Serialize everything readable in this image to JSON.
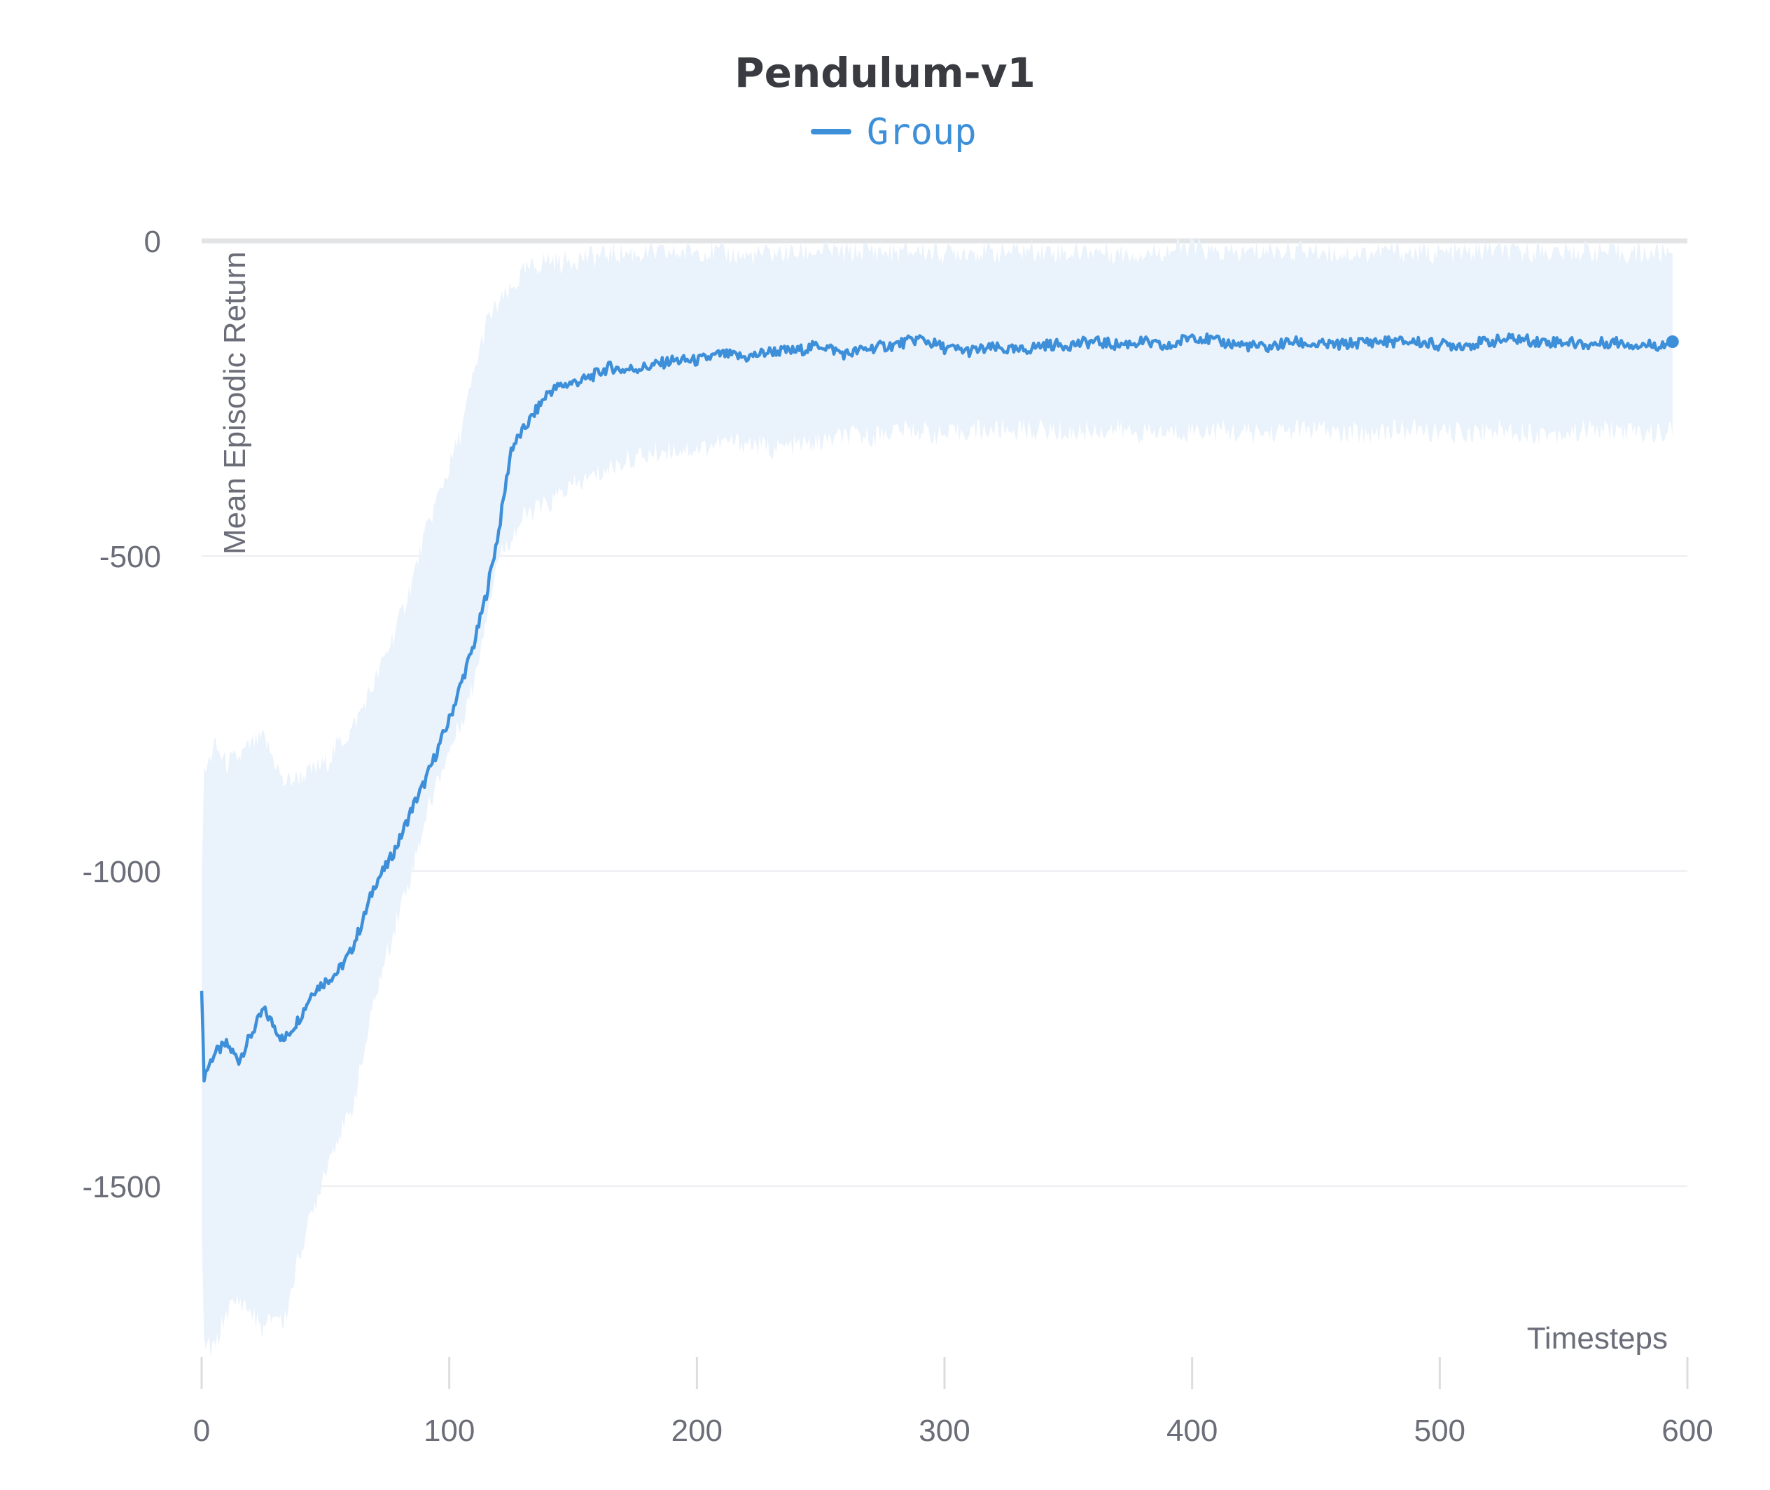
{
  "chart_data": {
    "type": "line",
    "title": "Pendulum-v1",
    "xlabel": "Timesteps",
    "ylabel": "Mean Episodic Return",
    "xlim": [
      0,
      600
    ],
    "ylim": [
      -1800,
      0
    ],
    "x_ticks": [
      "0",
      "100",
      "200",
      "300",
      "400",
      "500",
      "600"
    ],
    "y_ticks": [
      "0",
      "-500",
      "-1000",
      "-1500"
    ],
    "y_tick_values": [
      0,
      -500,
      -1000,
      -1500
    ],
    "x_tick_values": [
      0,
      100,
      200,
      300,
      400,
      500,
      600
    ],
    "grid": true,
    "legend_position": "top-center",
    "series": [
      {
        "name": "Group",
        "color": "#3c8fd8",
        "band_color": "#eaf2fb",
        "x": [
          0,
          1,
          5,
          10,
          15,
          20,
          25,
          30,
          33,
          40,
          45,
          50,
          55,
          60,
          65,
          70,
          75,
          80,
          85,
          90,
          95,
          100,
          105,
          110,
          115,
          120,
          125,
          130,
          135,
          140,
          145,
          150,
          155,
          160,
          165,
          170,
          180,
          190,
          200,
          210,
          220,
          230,
          240,
          250,
          260,
          270,
          280,
          290,
          300,
          310,
          320,
          330,
          340,
          350,
          360,
          370,
          380,
          390,
          400,
          410,
          420,
          430,
          440,
          450,
          460,
          470,
          480,
          490,
          500,
          510,
          520,
          530,
          540,
          550,
          560,
          570,
          580,
          590,
          594
        ],
        "values": [
          -1190,
          -1325,
          -1290,
          -1275,
          -1300,
          -1260,
          -1220,
          -1250,
          -1270,
          -1230,
          -1190,
          -1175,
          -1160,
          -1130,
          -1080,
          -1020,
          -990,
          -950,
          -900,
          -860,
          -810,
          -760,
          -700,
          -640,
          -560,
          -460,
          -330,
          -300,
          -270,
          -240,
          -230,
          -225,
          -220,
          -210,
          -200,
          -205,
          -200,
          -190,
          -190,
          -180,
          -185,
          -175,
          -175,
          -165,
          -180,
          -170,
          -165,
          -155,
          -170,
          -175,
          -170,
          -175,
          -165,
          -165,
          -160,
          -165,
          -160,
          -170,
          -150,
          -160,
          -165,
          -170,
          -160,
          -165,
          -165,
          -160,
          -160,
          -160,
          -165,
          -165,
          -160,
          -155,
          -160,
          -160,
          -165,
          -160,
          -165,
          -165,
          -160
        ],
        "upper": [
          -1000,
          -850,
          -800,
          -830,
          -820,
          -800,
          -790,
          -830,
          -860,
          -850,
          -840,
          -830,
          -800,
          -780,
          -740,
          -700,
          -650,
          -600,
          -540,
          -470,
          -410,
          -360,
          -300,
          -210,
          -130,
          -100,
          -80,
          -50,
          -40,
          -30,
          -35,
          -30,
          -25,
          -25,
          -20,
          -20,
          -20,
          -20,
          -15,
          -20,
          -25,
          -20,
          -20,
          -15,
          -20,
          -15,
          -20,
          -15,
          -20,
          -15,
          -20,
          -15,
          -15,
          -20,
          -15,
          -20,
          -20,
          -15,
          -10,
          -20,
          -20,
          -15,
          -15,
          -15,
          -20,
          -20,
          -15,
          -20,
          -20,
          -20,
          -15,
          -20,
          -15,
          -20,
          -15,
          -20,
          -20,
          -20,
          -15
        ],
        "lower": [
          -1580,
          -1750,
          -1760,
          -1700,
          -1680,
          -1700,
          -1730,
          -1700,
          -1720,
          -1600,
          -1540,
          -1470,
          -1420,
          -1390,
          -1300,
          -1200,
          -1130,
          -1060,
          -1000,
          -920,
          -860,
          -810,
          -760,
          -700,
          -590,
          -500,
          -470,
          -440,
          -425,
          -420,
          -400,
          -390,
          -380,
          -370,
          -360,
          -350,
          -340,
          -330,
          -330,
          -320,
          -320,
          -330,
          -325,
          -320,
          -310,
          -310,
          -300,
          -300,
          -310,
          -300,
          -300,
          -300,
          -300,
          -305,
          -300,
          -300,
          -305,
          -305,
          -300,
          -300,
          -305,
          -305,
          -300,
          -300,
          -305,
          -305,
          -300,
          -300,
          -305,
          -305,
          -300,
          -300,
          -305,
          -305,
          -300,
          -300,
          -305,
          -305,
          -300
        ]
      }
    ]
  }
}
